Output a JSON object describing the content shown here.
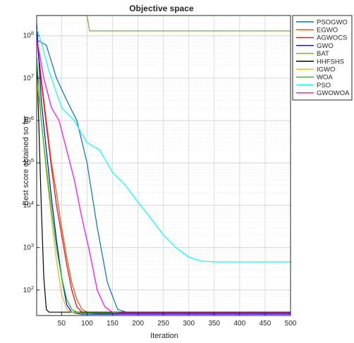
{
  "chart_data": {
    "type": "line",
    "title": "Objective space",
    "xlabel": "Iteration",
    "ylabel": "Best score obtained so far",
    "xlim": [
      1,
      500
    ],
    "ylim": [
      25,
      300000000
    ],
    "yscale": "log",
    "grid": true,
    "legend_position": "top-right outside",
    "x_ticks": [
      "50",
      "100",
      "150",
      "200",
      "250",
      "300",
      "350",
      "400",
      "450",
      "500"
    ],
    "y_ticks": [
      "10^2",
      "10^3",
      "10^4",
      "10^5",
      "10^6",
      "10^7",
      "10^8"
    ],
    "series": [
      {
        "name": "PSOGWO",
        "color": "#0072BD",
        "x": [
          1,
          20,
          40,
          60,
          80,
          100,
          120,
          140,
          160,
          180,
          200,
          500
        ],
        "y": [
          80000000,
          60000000,
          10000000,
          3000000,
          1000000,
          100000,
          3000,
          150,
          35,
          29,
          28,
          28
        ]
      },
      {
        "name": "EGWO",
        "color": "#D95319",
        "x": [
          1,
          10,
          20,
          30,
          40,
          50,
          60,
          70,
          80,
          90,
          100,
          120,
          500
        ],
        "y": [
          100000000,
          10000000,
          1000000,
          100000,
          20000,
          3000,
          600,
          150,
          60,
          35,
          30,
          29,
          29
        ]
      },
      {
        "name": "AGWOCS",
        "color": "#FF0000",
        "x": [
          1,
          10,
          20,
          30,
          40,
          50,
          60,
          70,
          80,
          90,
          100,
          120,
          500
        ],
        "y": [
          100000000,
          8000000,
          800000,
          80000,
          10000,
          2000,
          400,
          100,
          40,
          30,
          29,
          28,
          28
        ]
      },
      {
        "name": "GWO",
        "color": "#0000FF",
        "x": [
          1,
          10,
          20,
          30,
          40,
          50,
          60,
          70,
          80,
          90,
          100,
          500
        ],
        "y": [
          200000000,
          3000000,
          200000,
          15000,
          1500,
          200,
          45,
          30,
          28,
          27,
          27,
          27
        ]
      },
      {
        "name": "BAT",
        "color": "#77AC30",
        "x": [
          1,
          100,
          105,
          500
        ],
        "y": [
          300000000,
          300000000,
          130000000,
          130000000
        ]
      },
      {
        "name": "HHFSHS",
        "color": "#000000",
        "x": [
          1,
          5,
          10,
          15,
          20,
          25,
          30,
          500
        ],
        "y": [
          30000000,
          1000000,
          10000,
          200,
          35,
          30,
          30,
          30
        ]
      },
      {
        "name": "IGWO",
        "color": "#EDB120",
        "x": [
          1,
          10,
          20,
          30,
          40,
          50,
          60,
          70,
          80,
          90,
          100,
          500
        ],
        "y": [
          10000000,
          1000000,
          60000,
          5000,
          500,
          80,
          35,
          30,
          29,
          29,
          29,
          29
        ]
      },
      {
        "name": "WOA",
        "color": "#00CC00",
        "x": [
          1,
          10,
          20,
          30,
          40,
          50,
          60,
          70,
          80,
          90,
          100,
          500
        ],
        "y": [
          30000000,
          1000000,
          80000,
          8000,
          1000,
          200,
          60,
          35,
          30,
          29,
          29,
          29
        ]
      },
      {
        "name": "PSO",
        "color": "#00FFFF",
        "x": [
          1,
          10,
          25,
          50,
          75,
          100,
          125,
          150,
          175,
          200,
          225,
          250,
          275,
          300,
          325,
          350,
          400,
          450,
          500
        ],
        "y": [
          150000000,
          70000000,
          15000000,
          2000000,
          1000000,
          300000,
          200000,
          60000,
          30000,
          12000,
          5000,
          2000,
          1000,
          600,
          480,
          460,
          460,
          460,
          460
        ]
      },
      {
        "name": "GWOWOA",
        "color": "#FF00FF",
        "x": [
          1,
          15,
          30,
          45,
          60,
          75,
          90,
          105,
          120,
          135,
          150,
          165,
          500
        ],
        "y": [
          90000000,
          10000000,
          2000000,
          1000000,
          200000,
          40000,
          5000,
          800,
          100,
          40,
          30,
          29,
          29
        ]
      }
    ]
  }
}
